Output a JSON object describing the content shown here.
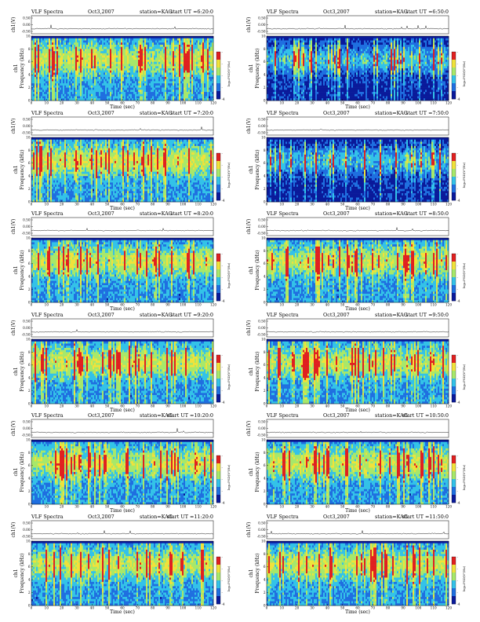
{
  "chart_data": [
    {
      "type": "heatmap",
      "title": "VLF Spectra",
      "date": "Oct3,2007",
      "station": "station=KAG",
      "start": "start UT =6:20:0",
      "xlabel": "Time (sec)",
      "ylabel": "Frequency (kHz)",
      "ch_label": "ch1",
      "top_ylabel": "ch1(V)",
      "cbar_label": "log₁₀PSD(V²/Hz)",
      "x_ticks": [
        "0",
        "10",
        "20",
        "30",
        "40",
        "50",
        "60",
        "70",
        "80",
        "90",
        "100",
        "110",
        "120"
      ],
      "y_ticks": [
        "0",
        "2",
        "4",
        "6",
        "8",
        "10"
      ],
      "top_y_ticks": [
        "0.50",
        "0.00",
        "-0.50"
      ],
      "cbar_ticks": [
        "-4",
        "-",
        "-",
        "-",
        "-"
      ],
      "xlim": [
        0,
        120
      ],
      "ylim": [
        0,
        10
      ]
    },
    {
      "type": "heatmap",
      "title": "VLF Spectra",
      "date": "Oct3,2007",
      "station": "station=KAG",
      "start": "start UT =6:50:0",
      "xlabel": "Time (sec)",
      "ylabel": "Frequency (kHz)",
      "ch_label": "ch1",
      "top_ylabel": "ch1(V)",
      "cbar_label": "log₁₀PSD(V²/Hz)",
      "x_ticks": [
        "0",
        "10",
        "20",
        "30",
        "40",
        "50",
        "60",
        "70",
        "80",
        "90",
        "100",
        "110",
        "120"
      ],
      "y_ticks": [
        "0",
        "2",
        "4",
        "6",
        "8",
        "10"
      ],
      "top_y_ticks": [
        "0.50",
        "0.00",
        "-0.50"
      ],
      "cbar_ticks": [
        "-4",
        "-",
        "-",
        "-",
        "-"
      ],
      "xlim": [
        0,
        120
      ],
      "ylim": [
        0,
        10
      ]
    },
    {
      "type": "heatmap",
      "title": "VLF Spectra",
      "date": "Oct3,2007",
      "station": "station=KAG",
      "start": "start UT =7:20:0",
      "xlabel": "Time (sec)",
      "ylabel": "Frequency (kHz)",
      "ch_label": "ch1",
      "top_ylabel": "ch1(V)",
      "cbar_label": "log₁₀PSD(V²/Hz)",
      "x_ticks": [
        "0",
        "10",
        "20",
        "30",
        "40",
        "50",
        "60",
        "70",
        "80",
        "90",
        "100",
        "110",
        "120"
      ],
      "y_ticks": [
        "0",
        "2",
        "4",
        "6",
        "8",
        "10"
      ],
      "top_y_ticks": [
        "0.50",
        "0.00",
        "-0.50"
      ],
      "cbar_ticks": [
        "-4",
        "-",
        "-",
        "-",
        "-"
      ],
      "xlim": [
        0,
        120
      ],
      "ylim": [
        0,
        10
      ]
    },
    {
      "type": "heatmap",
      "title": "VLF Spectra",
      "date": "Oct3,2007",
      "station": "station=KAG",
      "start": "start UT =7:50:0",
      "xlabel": "Time (sec)",
      "ylabel": "Frequency (kHz)",
      "ch_label": "ch1",
      "top_ylabel": "ch1(V)",
      "cbar_label": "log₁₀PSD(V²/Hz)",
      "x_ticks": [
        "0",
        "10",
        "20",
        "30",
        "40",
        "50",
        "60",
        "70",
        "80",
        "90",
        "100",
        "110",
        "120"
      ],
      "y_ticks": [
        "0",
        "2",
        "4",
        "6",
        "8",
        "10"
      ],
      "top_y_ticks": [
        "0.50",
        "0.00",
        "-0.50"
      ],
      "cbar_ticks": [
        "-4",
        "-",
        "-",
        "-",
        "-"
      ],
      "xlim": [
        0,
        120
      ],
      "ylim": [
        0,
        10
      ]
    },
    {
      "type": "heatmap",
      "title": "VLF Spectra",
      "date": "Oct3,2007",
      "station": "station=KAG",
      "start": "start UT =8:20:0",
      "xlabel": "Time (sec)",
      "ylabel": "Frequency (kHz)",
      "ch_label": "ch1",
      "top_ylabel": "ch1(V)",
      "cbar_label": "log₁₀PSD(V²/Hz)",
      "x_ticks": [
        "0",
        "10",
        "20",
        "30",
        "40",
        "50",
        "60",
        "70",
        "80",
        "90",
        "100",
        "110",
        "120"
      ],
      "y_ticks": [
        "0",
        "2",
        "4",
        "6",
        "8",
        "10"
      ],
      "top_y_ticks": [
        "0.50",
        "0.00",
        "-0.50"
      ],
      "cbar_ticks": [
        "-4",
        "-",
        "-",
        "-",
        "-"
      ],
      "xlim": [
        0,
        120
      ],
      "ylim": [
        0,
        10
      ]
    },
    {
      "type": "heatmap",
      "title": "VLF Spectra",
      "date": "Oct3,2007",
      "station": "station=KAG",
      "start": "start UT =8:50:0",
      "xlabel": "Time (sec)",
      "ylabel": "Frequency (kHz)",
      "ch_label": "ch1",
      "top_ylabel": "ch1(V)",
      "cbar_label": "log₁₀PSD(V²/Hz)",
      "x_ticks": [
        "0",
        "10",
        "20",
        "30",
        "40",
        "50",
        "60",
        "70",
        "80",
        "90",
        "100",
        "110",
        "120"
      ],
      "y_ticks": [
        "0",
        "2",
        "4",
        "6",
        "8",
        "10"
      ],
      "top_y_ticks": [
        "0.50",
        "0.00",
        "-0.50"
      ],
      "cbar_ticks": [
        "-4",
        "-",
        "-",
        "-",
        "-"
      ],
      "xlim": [
        0,
        120
      ],
      "ylim": [
        0,
        10
      ]
    },
    {
      "type": "heatmap",
      "title": "VLF Spectra",
      "date": "Oct3,2007",
      "station": "station=KAG",
      "start": "start UT =9:20:0",
      "xlabel": "Time (sec)",
      "ylabel": "Frequency (kHz)",
      "ch_label": "ch1",
      "top_ylabel": "ch1(V)",
      "cbar_label": "log₁₀PSD(V²/Hz)",
      "x_ticks": [
        "0",
        "10",
        "20",
        "30",
        "40",
        "50",
        "60",
        "70",
        "80",
        "90",
        "100",
        "110",
        "120"
      ],
      "y_ticks": [
        "0",
        "2",
        "4",
        "6",
        "8",
        "10"
      ],
      "top_y_ticks": [
        "0.50",
        "0.00",
        "-0.50"
      ],
      "cbar_ticks": [
        "-4",
        "-",
        "-",
        "-",
        "-"
      ],
      "xlim": [
        0,
        120
      ],
      "ylim": [
        0,
        10
      ]
    },
    {
      "type": "heatmap",
      "title": "VLF Spectra",
      "date": "Oct3,2007",
      "station": "station=KAG",
      "start": "start UT =9:50:0",
      "xlabel": "Time (sec)",
      "ylabel": "Frequency (kHz)",
      "ch_label": "ch1",
      "top_ylabel": "ch1(V)",
      "cbar_label": "log₁₀PSD(V²/Hz)",
      "x_ticks": [
        "0",
        "10",
        "20",
        "30",
        "40",
        "50",
        "60",
        "70",
        "80",
        "90",
        "100",
        "110",
        "120"
      ],
      "y_ticks": [
        "0",
        "2",
        "4",
        "6",
        "8",
        "10"
      ],
      "top_y_ticks": [
        "0.50",
        "0.00",
        "-0.50"
      ],
      "cbar_ticks": [
        "-4",
        "-",
        "-",
        "-",
        "-"
      ],
      "xlim": [
        0,
        120
      ],
      "ylim": [
        0,
        10
      ]
    },
    {
      "type": "heatmap",
      "title": "VLF Spectra",
      "date": "Oct3,2007",
      "station": "station=KAG",
      "start": "start UT =10:20:0",
      "xlabel": "Time (sec)",
      "ylabel": "Frequency (kHz)",
      "ch_label": "ch1",
      "top_ylabel": "ch1(V)",
      "cbar_label": "log₁₀PSD(V²/Hz)",
      "x_ticks": [
        "0",
        "10",
        "20",
        "30",
        "40",
        "50",
        "60",
        "70",
        "80",
        "90",
        "100",
        "110",
        "120"
      ],
      "y_ticks": [
        "0",
        "2",
        "4",
        "6",
        "8",
        "10"
      ],
      "top_y_ticks": [
        "0.50",
        "0.00",
        "-0.50"
      ],
      "cbar_ticks": [
        "-4",
        "-",
        "-",
        "-",
        "-"
      ],
      "xlim": [
        0,
        120
      ],
      "ylim": [
        0,
        10
      ]
    },
    {
      "type": "heatmap",
      "title": "VLF Spectra",
      "date": "Oct3,2007",
      "station": "station=KAG",
      "start": "start UT =10:50:0",
      "xlabel": "Time (sec)",
      "ylabel": "Frequency (kHz)",
      "ch_label": "ch1",
      "top_ylabel": "ch1(V)",
      "cbar_label": "log₁₀PSD(V²/Hz)",
      "x_ticks": [
        "0",
        "10",
        "20",
        "30",
        "40",
        "50",
        "60",
        "70",
        "80",
        "90",
        "100",
        "110",
        "120"
      ],
      "y_ticks": [
        "0",
        "2",
        "4",
        "6",
        "8",
        "10"
      ],
      "top_y_ticks": [
        "0.50",
        "0.00",
        "-0.50"
      ],
      "cbar_ticks": [
        "-4",
        "-",
        "-",
        "-",
        "-"
      ],
      "xlim": [
        0,
        120
      ],
      "ylim": [
        0,
        10
      ]
    },
    {
      "type": "heatmap",
      "title": "VLF Spectra",
      "date": "Oct3,2007",
      "station": "station=KAG",
      "start": "start UT =11:20:0",
      "xlabel": "Time (sec)",
      "ylabel": "Frequency (kHz)",
      "ch_label": "ch1",
      "top_ylabel": "ch1(V)",
      "cbar_label": "log₁₀PSD(V²/Hz)",
      "x_ticks": [
        "0",
        "10",
        "20",
        "30",
        "40",
        "50",
        "60",
        "70",
        "80",
        "90",
        "100",
        "110",
        "120"
      ],
      "y_ticks": [
        "0",
        "2",
        "4",
        "6",
        "8",
        "10"
      ],
      "top_y_ticks": [
        "0.50",
        "0.00",
        "-0.50"
      ],
      "cbar_ticks": [
        "-4",
        "-",
        "-",
        "-",
        "-"
      ],
      "xlim": [
        0,
        120
      ],
      "ylim": [
        0,
        10
      ]
    },
    {
      "type": "heatmap",
      "title": "VLF Spectra",
      "date": "Oct3,2007",
      "station": "station=KAG",
      "start": "start UT =11:50:0",
      "xlabel": "Time (sec)",
      "ylabel": "Frequency (kHz)",
      "ch_label": "ch1",
      "top_ylabel": "ch1(V)",
      "cbar_label": "log₁₀PSD(V²/Hz)",
      "x_ticks": [
        "0",
        "10",
        "20",
        "30",
        "40",
        "50",
        "60",
        "70",
        "80",
        "90",
        "100",
        "110",
        "120"
      ],
      "y_ticks": [
        "0",
        "2",
        "4",
        "6",
        "8",
        "10"
      ],
      "top_y_ticks": [
        "0.50",
        "0.00",
        "-0.50"
      ],
      "cbar_ticks": [
        "-4",
        "-",
        "-",
        "-",
        "-"
      ],
      "xlim": [
        0,
        120
      ],
      "ylim": [
        0,
        10
      ]
    }
  ],
  "colors": {
    "low": "#0a1a9a",
    "mid_low": "#1f6fe0",
    "mid": "#33c2e8",
    "mid_high": "#a7e86a",
    "high": "#f0e23a",
    "peak": "#e02020"
  }
}
